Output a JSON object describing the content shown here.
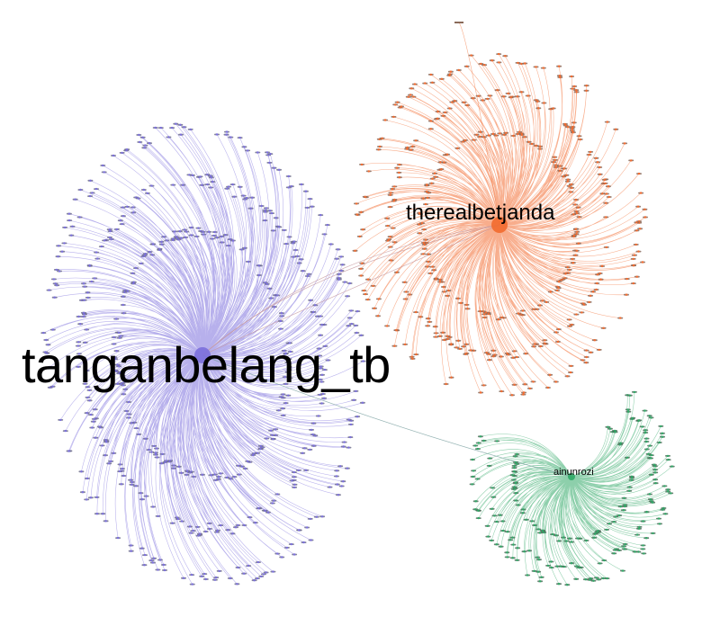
{
  "graph": {
    "clusters": [
      {
        "id": "purple",
        "hub_label": "tanganbelang_tb",
        "color": "#7b6fdc",
        "node_color": "#6e6e8c",
        "approx_nodes": 560
      },
      {
        "id": "orange",
        "hub_label": "therealbetjanda",
        "color": "#f26a2e",
        "node_color": "#8a6a5a",
        "approx_nodes": 420
      },
      {
        "id": "green",
        "hub_label": "ainunrozi",
        "color": "#2fa866",
        "node_color": "#4e6e5a",
        "approx_nodes": 210
      }
    ],
    "bridges": [
      {
        "from": "purple",
        "to": "orange"
      },
      {
        "from": "purple",
        "to": "green"
      }
    ]
  }
}
